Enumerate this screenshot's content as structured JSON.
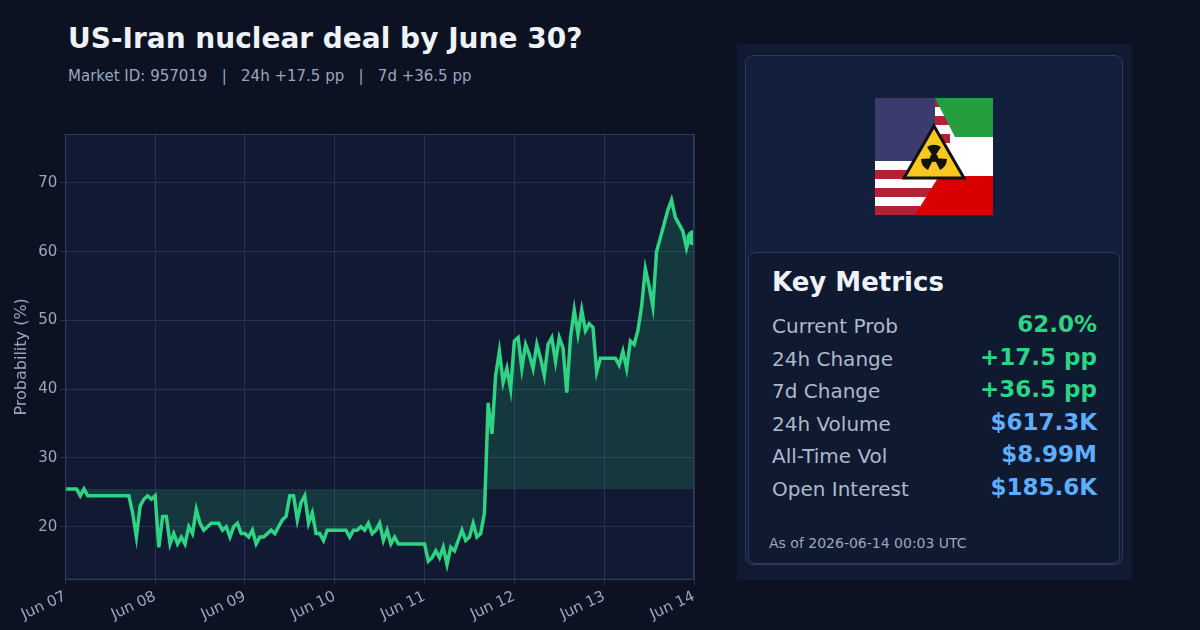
{
  "chart_data": {
    "type": "line",
    "title": "US-Iran nuclear deal by June 30?",
    "subtitle": "Market ID: 957019   |   24h +17.5 pp   |   7d +36.5 pp",
    "y_label": "Probability (%)",
    "color": "#2ed483",
    "grid": true,
    "categories": [
      "Jun 07",
      null,
      null,
      null,
      null,
      null,
      null,
      null,
      null,
      null,
      null,
      null,
      null,
      null,
      null,
      null,
      null,
      null,
      null,
      null,
      null,
      null,
      null,
      null,
      "Jun 08",
      null,
      null,
      null,
      null,
      null,
      null,
      null,
      null,
      null,
      null,
      null,
      null,
      null,
      null,
      null,
      null,
      null,
      null,
      null,
      null,
      null,
      null,
      null,
      "Jun 09",
      null,
      null,
      null,
      null,
      null,
      null,
      null,
      null,
      null,
      null,
      null,
      null,
      null,
      null,
      null,
      null,
      null,
      null,
      null,
      null,
      null,
      null,
      null,
      "Jun 10",
      null,
      null,
      null,
      null,
      null,
      null,
      null,
      null,
      null,
      null,
      null,
      null,
      null,
      null,
      null,
      null,
      null,
      null,
      null,
      null,
      null,
      null,
      null,
      "Jun 11",
      null,
      null,
      null,
      null,
      null,
      null,
      null,
      null,
      null,
      null,
      null,
      null,
      null,
      null,
      null,
      null,
      null,
      null,
      null,
      null,
      null,
      null,
      null,
      "Jun 12",
      null,
      null,
      null,
      null,
      null,
      null,
      null,
      null,
      null,
      null,
      null,
      null,
      null,
      null,
      null,
      null,
      null,
      null,
      null,
      null,
      null,
      null,
      null,
      "Jun 13",
      null,
      null,
      null,
      null,
      null,
      null,
      null,
      null,
      null,
      null,
      null,
      null,
      null,
      null,
      null,
      null,
      null,
      null,
      null,
      null,
      null,
      null,
      null,
      "Jun 14"
    ],
    "values": [
      25.5,
      25.5,
      25.5,
      25.5,
      24.5,
      25.5,
      24.5,
      24.5,
      24.5,
      24.5,
      24.5,
      24.5,
      24.5,
      24.5,
      24.5,
      24.5,
      24.5,
      24.5,
      22,
      18.5,
      23,
      24,
      24.5,
      24,
      24.5,
      17,
      21.5,
      21.5,
      17.5,
      19,
      17.5,
      18.5,
      17.5,
      20,
      19,
      22.5,
      20.5,
      19.5,
      20,
      20.5,
      20.5,
      20.5,
      19.5,
      20,
      18.5,
      20,
      20.5,
      19,
      19,
      18.5,
      19.5,
      17.5,
      18.5,
      18.5,
      19,
      19.5,
      19,
      20,
      21,
      21.5,
      24.5,
      24.5,
      21,
      23.5,
      24.5,
      20.5,
      22,
      19,
      19,
      18,
      19.5,
      19.5,
      19.5,
      19.5,
      19.5,
      19.5,
      18.5,
      19.5,
      19.5,
      20,
      19.5,
      20.5,
      19,
      19.5,
      20.5,
      18,
      19.5,
      17.5,
      18.5,
      17.5,
      17.5,
      17.5,
      17.5,
      17.5,
      17.5,
      17.5,
      17.5,
      15,
      15.5,
      16.5,
      15.5,
      17,
      14.5,
      17,
      16.5,
      18,
      19.5,
      18,
      18.5,
      20.5,
      18.5,
      19,
      22,
      38,
      33.5,
      42,
      45.5,
      41,
      43,
      40,
      47,
      47.5,
      43,
      46.5,
      45,
      43,
      46.5,
      44.5,
      42,
      46.5,
      47.5,
      44,
      47.5,
      46,
      39.5,
      47.5,
      51.5,
      48,
      51.5,
      48.5,
      49.5,
      49,
      42.5,
      44.5,
      44.5,
      44.5,
      44.5,
      44.5,
      43.5,
      45.5,
      43,
      47,
      46.5,
      48.5,
      52,
      57.5,
      55,
      52,
      60,
      62,
      64,
      66,
      67.5,
      65,
      64,
      63,
      60.5,
      62.5,
      62
    ],
    "ylim": [
      12.3,
      77.1
    ],
    "yticks": [
      20,
      30,
      40,
      50,
      60,
      70
    ]
  },
  "metrics_panel": {
    "title": "Key Metrics",
    "rows": [
      {
        "label": "Current Prob",
        "value": "62.0%",
        "color": "#2ed483"
      },
      {
        "label": "24h Change",
        "value": "+17.5 pp",
        "color": "#2ed483"
      },
      {
        "label": "7d Change",
        "value": "+36.5 pp",
        "color": "#2ed483"
      },
      {
        "label": "24h Volume",
        "value": "$617.3K",
        "color": "#5eaeff"
      },
      {
        "label": "All-Time Vol",
        "value": "$8.99M",
        "color": "#5eaeff"
      },
      {
        "label": "Open Interest",
        "value": "$185.6K",
        "color": "#5eaeff"
      }
    ],
    "as_of": "As of 2026-06-14 00:03 UTC"
  }
}
